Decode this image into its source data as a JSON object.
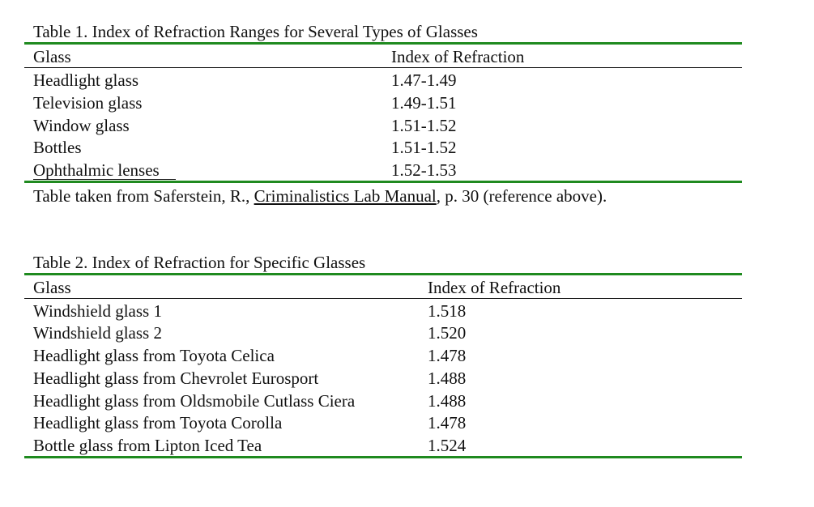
{
  "table1": {
    "caption": "Table 1.  Index of Refraction Ranges for Several Types of Glasses",
    "headers": [
      "Glass",
      "Index of Refraction"
    ],
    "rows": [
      [
        "Headlight glass",
        "1.47-1.49"
      ],
      [
        "Television glass",
        "1.49-1.51"
      ],
      [
        "Window glass",
        "1.51-1.52"
      ],
      [
        "Bottles",
        "1.51-1.52"
      ],
      [
        "Ophthalmic lenses",
        "1.52-1.53"
      ]
    ],
    "source": {
      "prefix": "Table taken from Saferstein, R., ",
      "title": "Criminalistics Lab Manual",
      "suffix": ", p. 30 (reference above)."
    }
  },
  "table2": {
    "caption": "Table 2. Index of Refraction for Specific Glasses",
    "headers": [
      "Glass",
      "Index of Refraction"
    ],
    "rows": [
      [
        "Windshield glass 1",
        "1.518"
      ],
      [
        "Windshield glass 2",
        "1.520"
      ],
      [
        "Headlight glass from Toyota Celica",
        "1.478"
      ],
      [
        "Headlight glass from Chevrolet Eurosport",
        "1.488"
      ],
      [
        "Headlight glass from Oldsmobile Cutlass Ciera",
        "1.488"
      ],
      [
        "Headlight glass from Toyota Corolla",
        "1.478"
      ],
      [
        "Bottle glass from Lipton Iced Tea",
        "1.524"
      ]
    ]
  },
  "colors": {
    "rule": "#1f8a1f",
    "text": "#111111"
  }
}
